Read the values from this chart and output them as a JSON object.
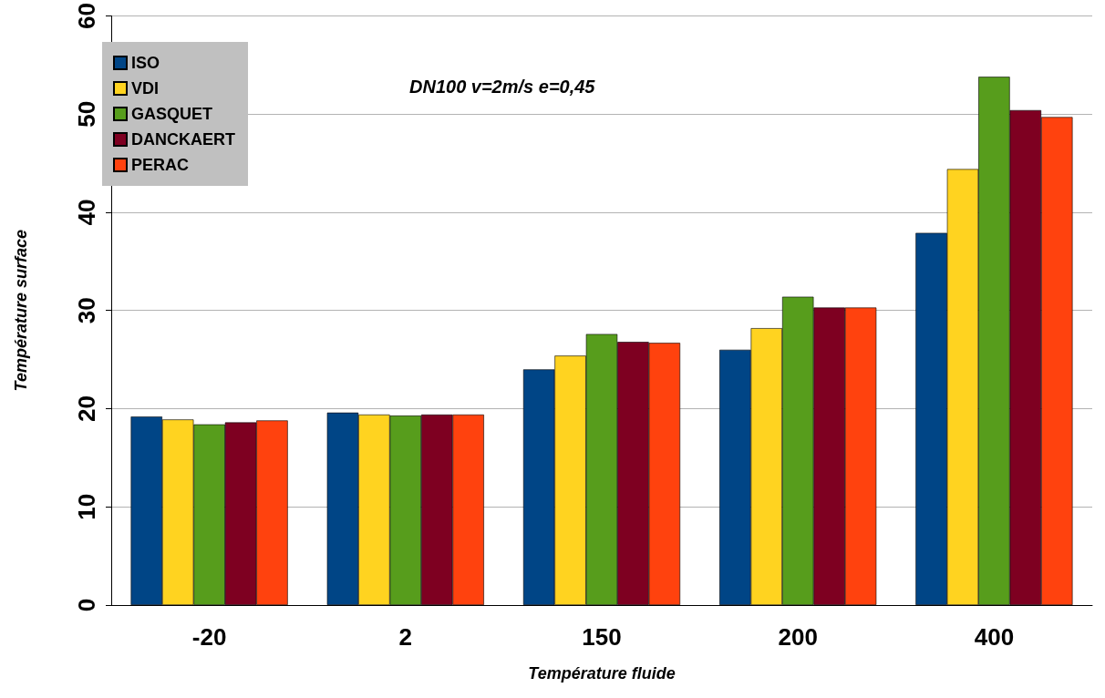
{
  "chart_data": {
    "type": "bar",
    "title": "DN100 v=2m/s e=0,45",
    "xlabel": "Température fluide",
    "ylabel": "Température surface",
    "categories": [
      "-20",
      "2",
      "150",
      "200",
      "400"
    ],
    "series": [
      {
        "name": "ISO",
        "color": "#004586",
        "values": [
          19.2,
          19.6,
          24.0,
          26.0,
          37.9
        ]
      },
      {
        "name": "VDI",
        "color": "#ffd320",
        "values": [
          18.9,
          19.4,
          25.4,
          28.2,
          44.4
        ]
      },
      {
        "name": "GASQUET",
        "color": "#579d1c",
        "values": [
          18.4,
          19.3,
          27.6,
          31.4,
          53.8
        ]
      },
      {
        "name": "DANCKAERT",
        "color": "#7e0021",
        "values": [
          18.6,
          19.4,
          26.8,
          30.3,
          50.4
        ]
      },
      {
        "name": "PERAC",
        "color": "#ff420e",
        "values": [
          18.8,
          19.4,
          26.7,
          30.3,
          49.7
        ]
      }
    ],
    "ylim": [
      0,
      60
    ],
    "yticks": [
      0,
      10,
      20,
      30,
      40,
      50,
      60
    ],
    "grid": "y",
    "legend": "top left"
  }
}
